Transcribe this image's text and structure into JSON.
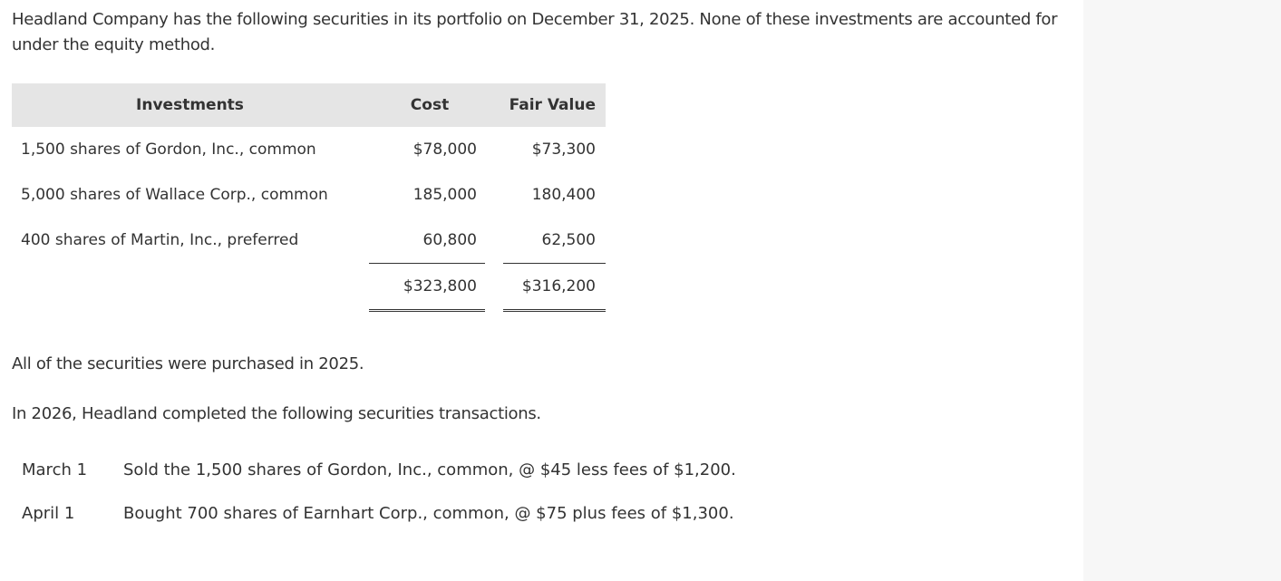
{
  "intro": "Headland Company has the following securities in its portfolio on December 31, 2025. None of these investments are accounted for under the equity method.",
  "table": {
    "headers": [
      "Investments",
      "Cost",
      "Fair Value"
    ],
    "rows": [
      [
        "1,500 shares of Gordon, Inc., common",
        "$78,000",
        "$73,300"
      ],
      [
        "5,000 shares of Wallace Corp., common",
        "185,000",
        "180,400"
      ],
      [
        "400 shares of Martin, Inc., preferred",
        "60,800",
        "62,500"
      ]
    ],
    "totals": [
      "$323,800",
      "$316,200"
    ]
  },
  "note": "All of the securities were purchased in 2025.",
  "lead": "In 2026, Headland completed the following securities transactions.",
  "transactions": [
    [
      "March 1",
      "Sold the 1,500 shares of Gordon, Inc., common, @ $45 less fees of $1,200."
    ],
    [
      "April 1",
      "Bought 700 shares of Earnhart Corp., common, @ $75 plus fees of $1,300."
    ]
  ]
}
